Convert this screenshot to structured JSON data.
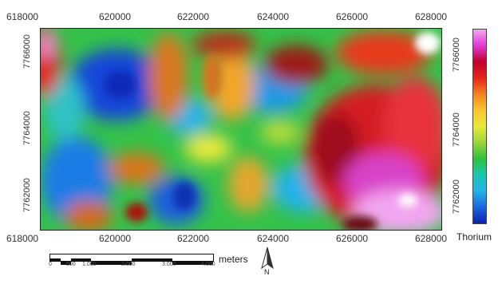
{
  "map": {
    "x_ticks_top": [
      "618000",
      "620000",
      "622000",
      "624000",
      "626000",
      "628000"
    ],
    "x_ticks_bottom": [
      "618000",
      "620000",
      "622000",
      "624000",
      "626000",
      "628000"
    ],
    "y_ticks_left": [
      "7766000",
      "7764000",
      "7762000"
    ],
    "y_ticks_right": [
      "7766000",
      "7764000",
      "7762000"
    ]
  },
  "legend": {
    "title": "Thorium",
    "colors": [
      "#f2a6f0",
      "#e03ad6",
      "#c0002a",
      "#e5251a",
      "#f4821c",
      "#f7c630",
      "#e9e93a",
      "#9bd63a",
      "#2fc23e",
      "#19c7b2",
      "#23b3e8",
      "#1b66df",
      "#0b21b0"
    ]
  },
  "scalebar": {
    "unit": "meters",
    "ticks": [
      "0",
      "500",
      "1.000",
      "2.000",
      "3.000",
      "4.000"
    ]
  },
  "north_arrow": {
    "label": "N"
  }
}
